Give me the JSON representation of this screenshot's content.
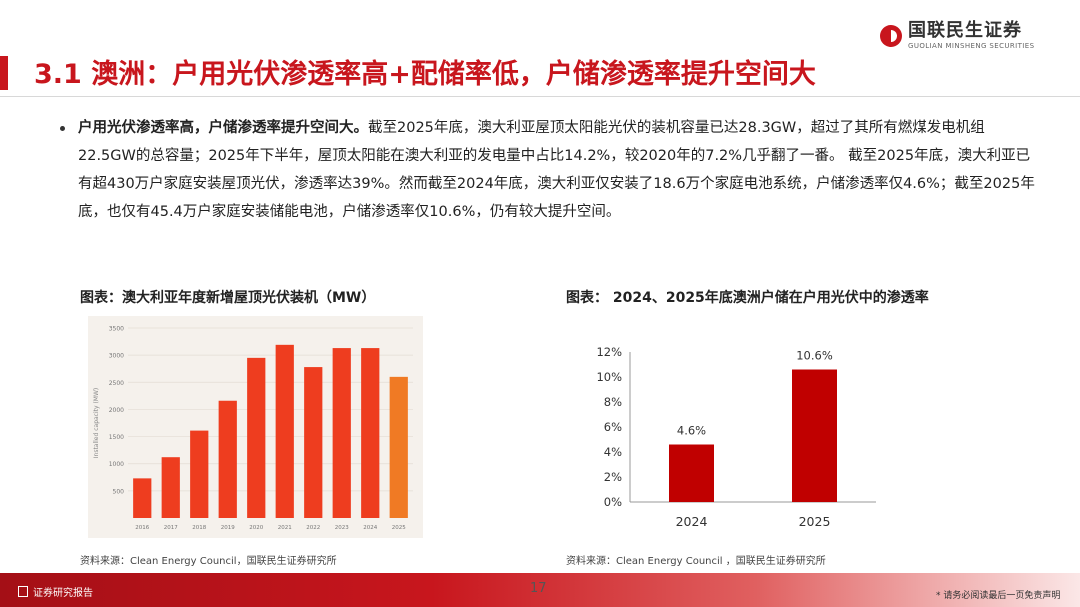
{
  "brand": {
    "name_cn": "国联民生证券",
    "name_en": "GUOLIAN MINSHENG SECURITIES",
    "color": "#c8161d"
  },
  "title": "3.1 澳洲：户用光伏渗透率高+配储率低，户储渗透率提升空间大",
  "bullet": {
    "lead": "户用光伏渗透率高，户储渗透率提升空间大。",
    "text": "截至2025年底，澳大利亚屋顶太阳能光伏的装机容量已达28.3GW，超过了其所有燃煤发电机组22.5GW的总容量；2025年下半年，屋顶太阳能在澳大利亚的发电量中占比14.2%，较2020年的7.2%几乎翻了一番。 截至2025年底，澳大利亚已有超430万户家庭安装屋顶光伏，渗透率达39%。然而截至2024年底，澳大利亚仅安装了18.6万个家庭电池系统，户储渗透率仅4.6%；截至2025年底，也仅有45.4万户家庭安装储能电池，户储渗透率仅10.6%，仍有较大提升空间。"
  },
  "figure1": {
    "caption": "图表：澳大利亚年度新增屋顶光伏装机（MW）",
    "source": "资料来源：Clean Energy Council，国联民生证券研究所"
  },
  "figure2": {
    "caption": "图表： 2024、2025年底澳洲户储在户用光伏中的渗透率",
    "source": "资料来源：Clean Energy Council ，国联民生证券研究所"
  },
  "chart_data": [
    {
      "type": "bar",
      "ylabel": "Installed capacity (MW)",
      "categories": [
        "2016",
        "2017",
        "2018",
        "2019",
        "2020",
        "2021",
        "2022",
        "2023",
        "2024",
        "2025"
      ],
      "values": [
        730,
        1120,
        1610,
        2160,
        2950,
        3190,
        2780,
        3130,
        3130,
        2600
      ],
      "yticks": [
        500,
        1000,
        1500,
        2000,
        2500,
        3000,
        3500
      ],
      "ylim": [
        0,
        3500
      ],
      "bar_color": "#ee3d1f",
      "last_bar_color": "#f07a24",
      "grid": true
    },
    {
      "type": "bar",
      "categories": [
        "2024",
        "2025"
      ],
      "values": [
        4.6,
        10.6
      ],
      "labels": [
        "4.6%",
        "10.6%"
      ],
      "yticks": [
        "0%",
        "2%",
        "4%",
        "6%",
        "8%",
        "10%",
        "12%"
      ],
      "ylim": [
        0,
        12
      ],
      "bar_color": "#c00000",
      "grid": false
    }
  ],
  "footer": {
    "label": "证券研究报告",
    "page": "17",
    "disclaimer": "* 请务必阅读最后一页免责声明"
  }
}
